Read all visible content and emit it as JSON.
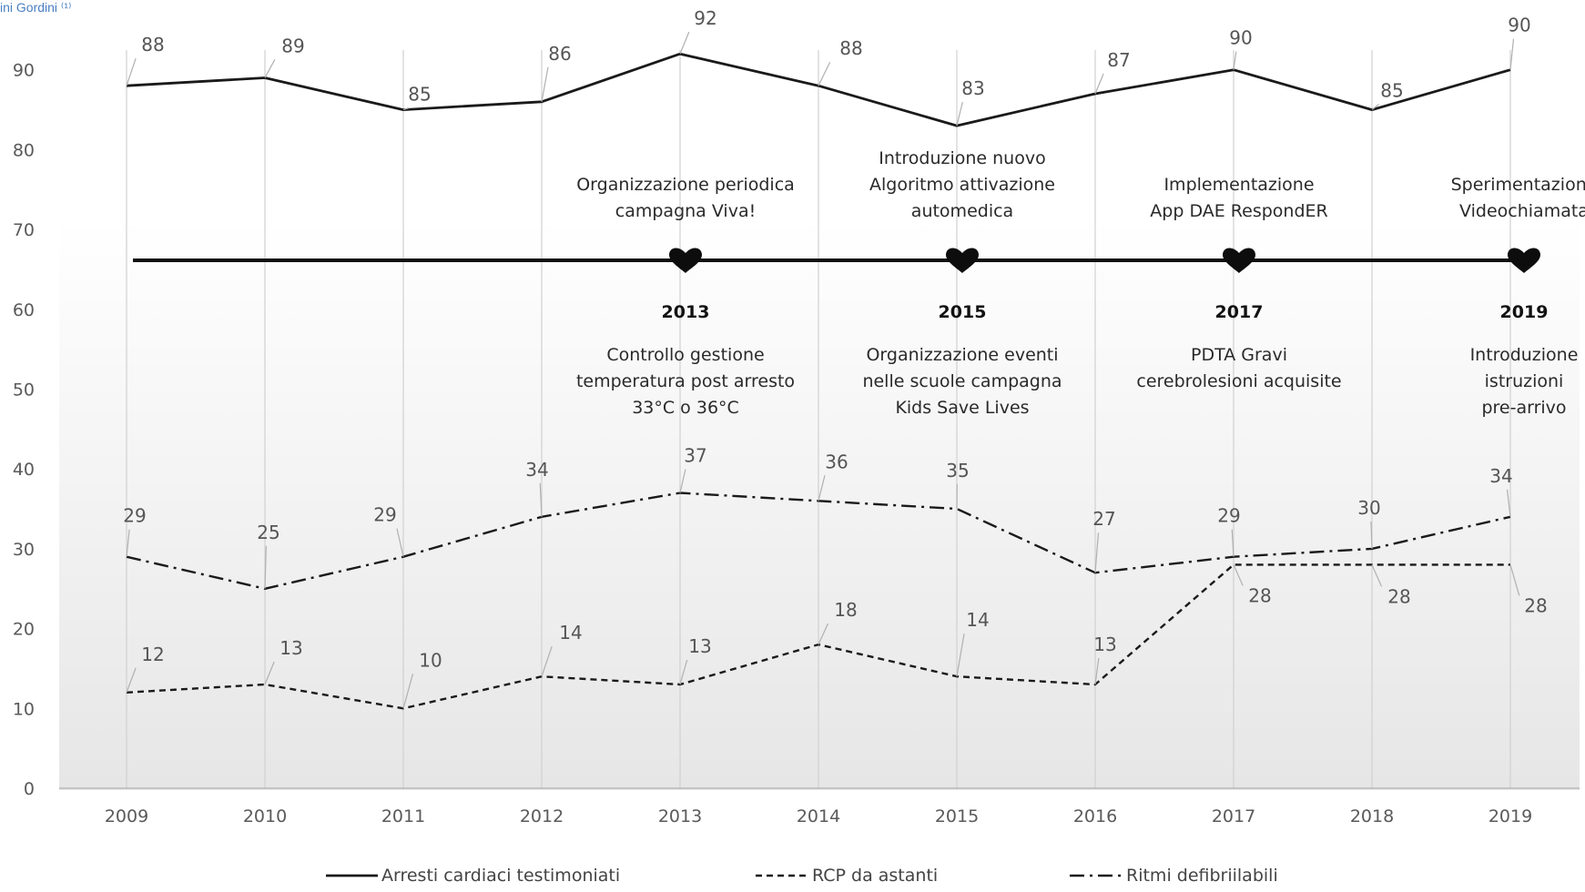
{
  "header": {
    "author": "ini Gordini ⁽¹⁾"
  },
  "chart_data": {
    "type": "line",
    "categories": [
      "2009",
      "2010",
      "2011",
      "2012",
      "2013",
      "2014",
      "2015",
      "2016",
      "2017",
      "2018",
      "2019"
    ],
    "series": [
      {
        "name": "Arresti cardiaci testimoniati",
        "style": "solid",
        "values": [
          88,
          89,
          85,
          86,
          92,
          88,
          83,
          87,
          90,
          85,
          90
        ]
      },
      {
        "name": "RCP da astanti",
        "style": "dashed",
        "values": [
          12,
          13,
          10,
          14,
          13,
          18,
          14,
          13,
          28,
          28,
          28
        ]
      },
      {
        "name": "Ritmi defibriilabili",
        "style": "dashdot",
        "values": [
          29,
          25,
          29,
          34,
          37,
          36,
          35,
          27,
          29,
          30,
          34
        ]
      }
    ],
    "ylim": [
      0,
      90
    ],
    "yticks": [
      0,
      10,
      20,
      30,
      40,
      50,
      60,
      70,
      80,
      90
    ],
    "grid": "vertical",
    "legend_position": "bottom",
    "colors": {
      "line": "#1a1a1a",
      "grid": "#d0d0d0",
      "timeline": "#111111"
    },
    "timeline": {
      "milestones": [
        {
          "year": "2013",
          "above": [
            "Organizzazione periodica",
            "campagna Viva!"
          ],
          "below": [
            "Controllo gestione",
            "temperatura  post arresto",
            "33°C o 36°C"
          ]
        },
        {
          "year": "2015",
          "above": [
            "Introduzione  nuovo",
            "Algoritmo attivazione",
            "automedica"
          ],
          "below": [
            "Organizzazione eventi",
            "nelle scuole campagna",
            "Kids Save Lives"
          ]
        },
        {
          "year": "2017",
          "above": [
            "Implementazione",
            "App DAE RespondER"
          ],
          "below": [
            "PDTA  Gravi",
            "cerebrolesioni acquisite"
          ]
        },
        {
          "year": "2019",
          "above": [
            "Sperimentazione",
            "Videochiamata"
          ],
          "below": [
            "Introduzione",
            "istruzioni",
            "pre-arrivo"
          ]
        }
      ],
      "icon": "heart-icon"
    }
  }
}
